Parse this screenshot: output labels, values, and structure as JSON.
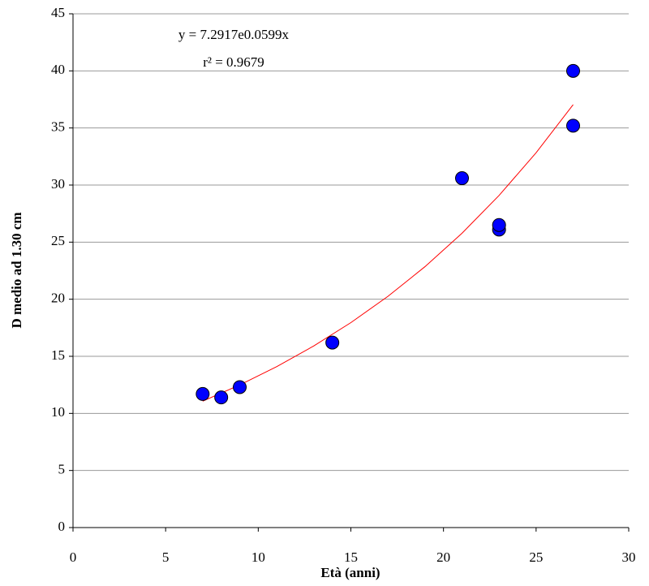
{
  "chart_data": {
    "type": "scatter",
    "xlabel": "Età (anni)",
    "ylabel": "D medio ad 1.30 cm",
    "annotations": [
      "y = 7.2917e0.0599x",
      "r² = 0.9679"
    ],
    "series": [
      {
        "color": "#0000ff",
        "x": [
          7,
          8,
          9,
          14,
          21,
          23,
          23,
          27,
          27
        ],
        "values": [
          11.7,
          11.4,
          12.3,
          16.2,
          30.6,
          26.1,
          26.5,
          40,
          35.2
        ]
      },
      {
        "type": "line",
        "color": "#ff0000",
        "x": [
          7,
          9,
          11,
          13,
          15,
          17,
          19,
          21,
          23,
          25,
          27
        ],
        "values": [
          11.07,
          12.49,
          14.1,
          15.91,
          17.95,
          20.25,
          22.85,
          25.78,
          29.09,
          32.83,
          37.04
        ]
      }
    ],
    "xlim": [
      0,
      30
    ],
    "xticks": [
      0,
      5,
      10,
      15,
      20,
      25,
      30
    ],
    "ylim": [
      0,
      45
    ],
    "yticks": [
      0,
      5,
      10,
      15,
      20,
      25,
      30,
      35,
      40,
      45
    ],
    "grid": true
  }
}
